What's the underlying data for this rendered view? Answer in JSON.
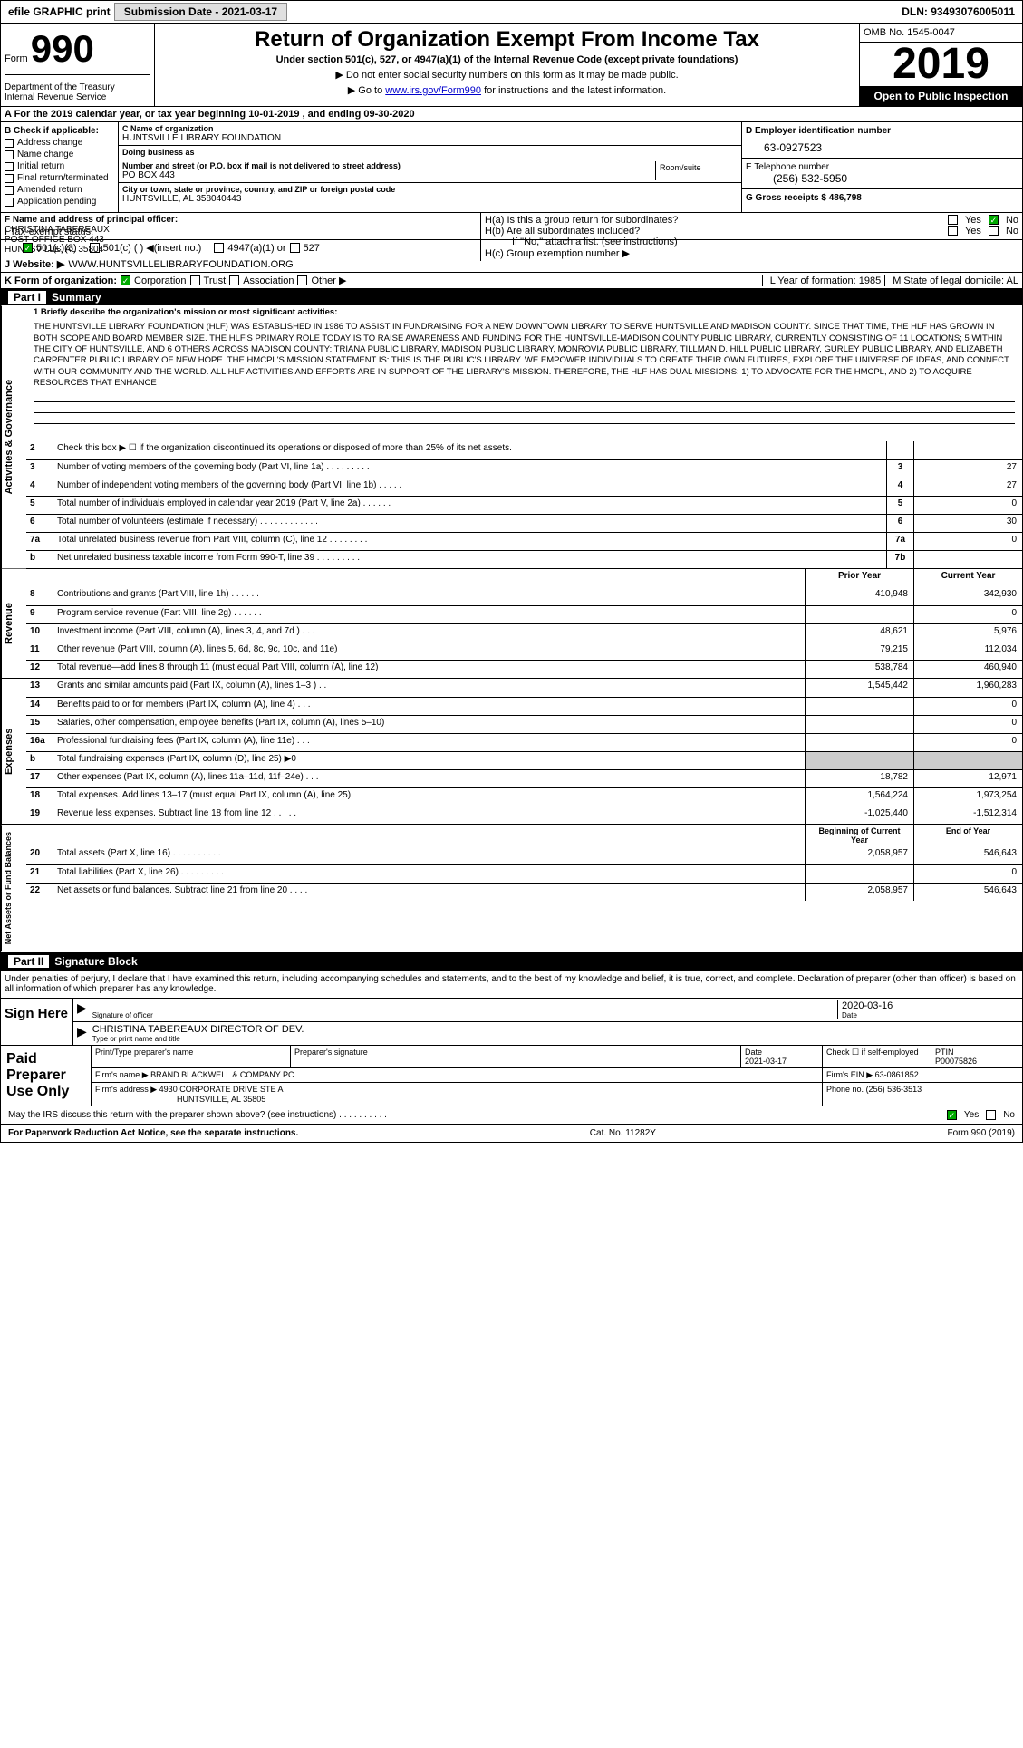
{
  "top": {
    "efile": "efile GRAPHIC print",
    "sub_label": "Submission Date - 2021-03-17",
    "dln": "DLN: 93493076005011"
  },
  "header": {
    "form_word": "Form",
    "form_num": "990",
    "dept": "Department of the Treasury\nInternal Revenue Service",
    "title": "Return of Organization Exempt From Income Tax",
    "sub": "Under section 501(c), 527, or 4947(a)(1) of the Internal Revenue Code (except private foundations)",
    "sub2a": "Do not enter social security numbers on this form as it may be made public.",
    "sub2b_pre": "Go to ",
    "sub2b_link": "www.irs.gov/Form990",
    "sub2b_post": " for instructions and the latest information.",
    "omb": "OMB No. 1545-0047",
    "year": "2019",
    "open": "Open to Public Inspection"
  },
  "period": "A For the 2019 calendar year, or tax year beginning 10-01-2019   , and ending 09-30-2020",
  "col_b": {
    "heading": "B Check if applicable:",
    "items": [
      "Address change",
      "Name change",
      "Initial return",
      "Final return/terminated",
      "Amended return",
      "Application pending"
    ]
  },
  "col_c": {
    "name_lbl": "C Name of organization",
    "name": "HUNTSVILLE LIBRARY FOUNDATION",
    "dba_lbl": "Doing business as",
    "dba": "",
    "addr_lbl": "Number and street (or P.O. box if mail is not delivered to street address)",
    "addr": "PO BOX 443",
    "room_lbl": "Room/suite",
    "city_lbl": "City or town, state or province, country, and ZIP or foreign postal code",
    "city": "HUNTSVILLE, AL  358040443"
  },
  "col_d": {
    "ein_lbl": "D Employer identification number",
    "ein": "63-0927523",
    "tel_lbl": "E Telephone number",
    "tel": "(256) 532-5950",
    "gross": "G Gross receipts $ 486,798"
  },
  "f_officer": {
    "lbl": "F  Name and address of principal officer:",
    "name": "CHRISTINA TABEREAUX",
    "addr1": "POST OFFICE BOX 443",
    "addr2": "HUNTSVILLE, AL  35804"
  },
  "h_section": {
    "ha": "H(a)  Is this a group return for subordinates?",
    "hb": "H(b)  Are all subordinates included?",
    "hb_note": "If \"No,\" attach a list. (see instructions)",
    "hc": "H(c)  Group exemption number ▶"
  },
  "tax_status": {
    "label": "I   Tax-exempt status:",
    "opts": [
      "501(c)(3)",
      "501(c) (  ) ◀(insert no.)",
      "4947(a)(1) or",
      "527"
    ]
  },
  "website": {
    "label": "J   Website: ▶",
    "val": "WWW.HUNTSVILLELIBRARYFOUNDATION.ORG"
  },
  "k_form": "K Form of organization:",
  "k_opts": [
    "Corporation",
    "Trust",
    "Association",
    "Other ▶"
  ],
  "l_year": "L Year of formation: 1985",
  "m_state": "M State of legal domicile: AL",
  "part1": {
    "title": "Part I",
    "name": "Summary",
    "mission_lbl": "1   Briefly describe the organization's mission or most significant activities:",
    "mission": "THE HUNTSVILLE LIBRARY FOUNDATION (HLF) WAS ESTABLISHED IN 1986 TO ASSIST IN FUNDRAISING FOR A NEW DOWNTOWN LIBRARY TO SERVE HUNTSVILLE AND MADISON COUNTY. SINCE THAT TIME, THE HLF HAS GROWN IN BOTH SCOPE AND BOARD MEMBER SIZE. THE HLF'S PRIMARY ROLE TODAY IS TO RAISE AWARENESS AND FUNDING FOR THE HUNTSVILLE-MADISON COUNTY PUBLIC LIBRARY, CURRENTLY CONSISTING OF 11 LOCATIONS; 5 WITHIN THE CITY OF HUNTSVILLE, AND 6 OTHERS ACROSS MADISON COUNTY: TRIANA PUBLIC LIBRARY, MADISON PUBLIC LIBRARY, MONROVIA PUBLIC LIBRARY, TILLMAN D. HILL PUBLIC LIBRARY, GURLEY PUBLIC LIBRARY, AND ELIZABETH CARPENTER PUBLIC LIBRARY OF NEW HOPE. THE HMCPL'S MISSION STATEMENT IS: THIS IS THE PUBLIC'S LIBRARY. WE EMPOWER INDIVIDUALS TO CREATE THEIR OWN FUTURES, EXPLORE THE UNIVERSE OF IDEAS, AND CONNECT WITH OUR COMMUNITY AND THE WORLD. ALL HLF ACTIVITIES AND EFFORTS ARE IN SUPPORT OF THE LIBRARY'S MISSION. THEREFORE, THE HLF HAS DUAL MISSIONS: 1) TO ADVOCATE FOR THE HMCPL, AND 2) TO ACQUIRE RESOURCES THAT ENHANCE"
  },
  "gov_lines": [
    {
      "n": "2",
      "d": "Check this box ▶ ☐ if the organization discontinued its operations or disposed of more than 25% of its net assets.",
      "b": "",
      "v": ""
    },
    {
      "n": "3",
      "d": "Number of voting members of the governing body (Part VI, line 1a)   .    .    .    .    .    .    .    .    .",
      "b": "3",
      "v": "27"
    },
    {
      "n": "4",
      "d": "Number of independent voting members of the governing body (Part VI, line 1b)     .    .    .    .    .",
      "b": "4",
      "v": "27"
    },
    {
      "n": "5",
      "d": "Total number of individuals employed in calendar year 2019 (Part V, line 2a)  .    .    .    .    .    .",
      "b": "5",
      "v": "0"
    },
    {
      "n": "6",
      "d": "Total number of volunteers (estimate if necessary)   .    .    .    .    .    .    .    .    .    .    .    .",
      "b": "6",
      "v": "30"
    },
    {
      "n": "7a",
      "d": "Total unrelated business revenue from Part VIII, column (C), line 12  .    .    .    .    .    .    .    .",
      "b": "7a",
      "v": "0"
    },
    {
      "n": "b",
      "d": "Net unrelated business taxable income from Form 990-T, line 39   .    .    .    .    .    .    .    .    .",
      "b": "7b",
      "v": ""
    }
  ],
  "two_col_header": {
    "prior": "Prior Year",
    "current": "Current Year"
  },
  "rev_lines": [
    {
      "n": "8",
      "d": "Contributions and grants (Part VIII, line 1h)   .    .    .    .    .    .",
      "p": "410,948",
      "c": "342,930"
    },
    {
      "n": "9",
      "d": "Program service revenue (Part VIII, line 2g)   .    .    .    .    .    .",
      "p": "",
      "c": "0"
    },
    {
      "n": "10",
      "d": "Investment income (Part VIII, column (A), lines 3, 4, and 7d )    .    .    .",
      "p": "48,621",
      "c": "5,976"
    },
    {
      "n": "11",
      "d": "Other revenue (Part VIII, column (A), lines 5, 6d, 8c, 9c, 10c, and 11e)",
      "p": "79,215",
      "c": "112,034"
    },
    {
      "n": "12",
      "d": "Total revenue—add lines 8 through 11 (must equal Part VIII, column (A), line 12)",
      "p": "538,784",
      "c": "460,940"
    }
  ],
  "exp_lines": [
    {
      "n": "13",
      "d": "Grants and similar amounts paid (Part IX, column (A), lines 1–3 )  .    .",
      "p": "1,545,442",
      "c": "1,960,283"
    },
    {
      "n": "14",
      "d": "Benefits paid to or for members (Part IX, column (A), line 4)  .    .    .",
      "p": "",
      "c": "0"
    },
    {
      "n": "15",
      "d": "Salaries, other compensation, employee benefits (Part IX, column (A), lines 5–10)",
      "p": "",
      "c": "0"
    },
    {
      "n": "16a",
      "d": "Professional fundraising fees (Part IX, column (A), line 11e)   .    .    .",
      "p": "",
      "c": "0"
    },
    {
      "n": "b",
      "d": "Total fundraising expenses (Part IX, column (D), line 25) ▶0",
      "p": "shaded",
      "c": "shaded"
    },
    {
      "n": "17",
      "d": "Other expenses (Part IX, column (A), lines 11a–11d, 11f–24e)    .    .    .",
      "p": "18,782",
      "c": "12,971"
    },
    {
      "n": "18",
      "d": "Total expenses. Add lines 13–17 (must equal Part IX, column (A), line 25)",
      "p": "1,564,224",
      "c": "1,973,254"
    },
    {
      "n": "19",
      "d": "Revenue less expenses. Subtract line 18 from line 12  .    .    .    .    .",
      "p": "-1,025,440",
      "c": "-1,512,314"
    }
  ],
  "net_header": {
    "begin": "Beginning of Current Year",
    "end": "End of Year"
  },
  "net_lines": [
    {
      "n": "20",
      "d": "Total assets (Part X, line 16)  .    .    .    .    .    .    .    .    .    .",
      "p": "2,058,957",
      "c": "546,643"
    },
    {
      "n": "21",
      "d": "Total liabilities (Part X, line 26)  .    .    .    .    .    .    .    .    .",
      "p": "",
      "c": "0"
    },
    {
      "n": "22",
      "d": "Net assets or fund balances. Subtract line 21 from line 20  .    .    .    .",
      "p": "2,058,957",
      "c": "546,643"
    }
  ],
  "part2": {
    "title": "Part II",
    "name": "Signature Block",
    "declare": "Under penalties of perjury, I declare that I have examined this return, including accompanying schedules and statements, and to the best of my knowledge and belief, it is true, correct, and complete. Declaration of preparer (other than officer) is based on all information of which preparer has any knowledge."
  },
  "sign": {
    "label": "Sign Here",
    "sig_lbl": "Signature of officer",
    "date": "2020-03-16",
    "date_lbl": "Date",
    "name": "CHRISTINA TABEREAUX  DIRECTOR OF DEV.",
    "name_lbl": "Type or print name and title"
  },
  "preparer": {
    "label": "Paid Preparer Use Only",
    "cols": [
      "Print/Type preparer's name",
      "Preparer's signature",
      "Date",
      "",
      "PTIN"
    ],
    "date": "2021-03-17",
    "self_emp": "Check ☐ if self-employed",
    "ptin": "P00075826",
    "firm_lbl": "Firm's name      ▶",
    "firm": "BRAND BLACKWELL & COMPANY PC",
    "ein_lbl": "Firm's EIN ▶",
    "ein": "63-0861852",
    "addr_lbl": "Firm's address ▶",
    "addr": "4930 CORPORATE DRIVE STE A",
    "addr2": "HUNTSVILLE, AL  35805",
    "phone_lbl": "Phone no.",
    "phone": "(256) 536-3513"
  },
  "discuss": "May the IRS discuss this return with the preparer shown above? (see instructions)   .    .    .    .    .    .    .    .    .    .",
  "footer": {
    "l": "For Paperwork Reduction Act Notice, see the separate instructions.",
    "c": "Cat. No. 11282Y",
    "r": "Form 990 (2019)"
  }
}
